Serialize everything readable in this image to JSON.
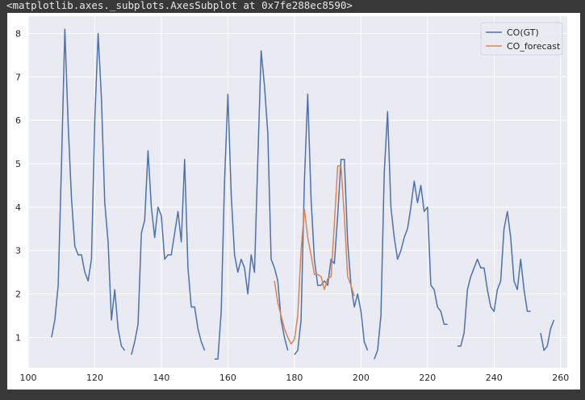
{
  "repr_text": "<matplotlib.axes._subplots.AxesSubplot at 0x7fe288ec8590>",
  "chart_data": {
    "type": "line",
    "xlim": [
      100,
      262
    ],
    "ylim": [
      0.3,
      8.4
    ],
    "xticks": [
      100,
      120,
      140,
      160,
      180,
      200,
      220,
      240,
      260
    ],
    "yticks": [
      1,
      2,
      3,
      4,
      5,
      6,
      7,
      8
    ],
    "grid": true,
    "legend_position": "top-right",
    "plot_background": "#eaeaf2",
    "series": [
      {
        "name": "CO(GT)",
        "color": "#4c72b0",
        "start_x": 107,
        "values": [
          1.0,
          1.4,
          2.2,
          5.0,
          8.1,
          5.9,
          4.2,
          3.1,
          2.9,
          2.9,
          2.5,
          2.3,
          2.8,
          6.0,
          8.0,
          6.5,
          4.1,
          3.2,
          1.4,
          2.1,
          1.2,
          0.8,
          0.7,
          null,
          0.6,
          0.9,
          1.3,
          3.4,
          3.7,
          5.3,
          4.0,
          3.3,
          4.0,
          3.8,
          2.8,
          2.9,
          2.9,
          3.4,
          3.9,
          3.2,
          5.1,
          2.6,
          1.7,
          1.7,
          1.2,
          0.9,
          0.7,
          null,
          null,
          0.5,
          0.5,
          1.6,
          4.6,
          6.6,
          4.3,
          2.9,
          2.5,
          2.8,
          2.6,
          2.0,
          2.9,
          2.5,
          5.1,
          7.6,
          6.8,
          5.7,
          2.8,
          2.6,
          2.3,
          1.4,
          1.0,
          0.7,
          null,
          0.6,
          0.7,
          1.4,
          4.6,
          6.6,
          4.2,
          2.8,
          2.2,
          2.2,
          2.3,
          2.2,
          2.8,
          2.7,
          3.8,
          5.1,
          5.1,
          3.2,
          2.2,
          1.7,
          2.0,
          1.6,
          0.9,
          0.7,
          null,
          0.5,
          0.7,
          1.5,
          4.8,
          6.2,
          4.0,
          3.3,
          2.8,
          3.0,
          3.3,
          3.5,
          4.0,
          4.6,
          4.1,
          4.5,
          3.9,
          4.0,
          2.2,
          2.1,
          1.7,
          1.6,
          1.3,
          1.3,
          null,
          null,
          0.8,
          0.8,
          1.1,
          2.1,
          2.4,
          2.6,
          2.8,
          2.6,
          2.6,
          2.1,
          1.7,
          1.6,
          2.1,
          2.3,
          3.5,
          3.9,
          3.3,
          2.3,
          2.1,
          2.8,
          2.1,
          1.6,
          1.6,
          null,
          null,
          1.1,
          0.7,
          0.8,
          1.2,
          1.4
        ]
      },
      {
        "name": "CO_forecast",
        "color": "#dd8452",
        "start_x": 174,
        "values": [
          2.3,
          1.8,
          1.5,
          1.2,
          1.0,
          0.85,
          0.95,
          1.5,
          3.0,
          3.95,
          3.3,
          2.9,
          2.45,
          2.45,
          2.4,
          2.1,
          2.35,
          2.4,
          3.6,
          4.95,
          4.95,
          3.8,
          2.4,
          2.2,
          1.95
        ]
      }
    ]
  }
}
